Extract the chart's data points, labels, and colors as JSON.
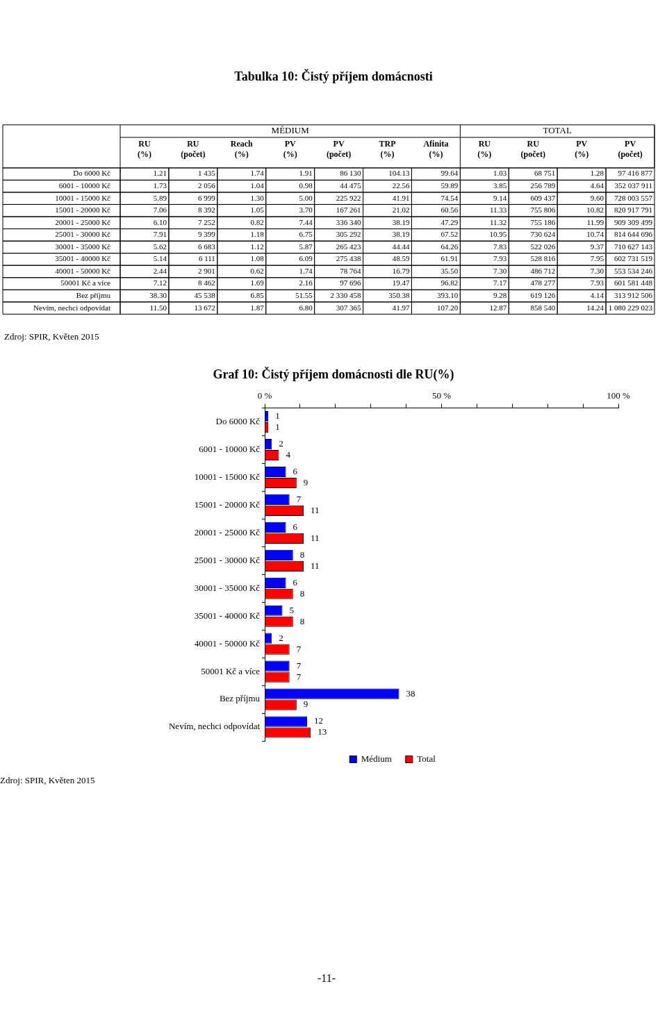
{
  "chart_data": [
    {
      "type": "heatmap",
      "title": "Tabulka 10: Čistý příjem domácnosti",
      "categories": [
        "RU (%)",
        "RU (počet)",
        "Reach (%)",
        "PV (%)",
        "PV (počet)",
        "TRP (%)",
        "Afinita (%)",
        "RU (%)",
        "RU (počet)",
        "PV (%)",
        "PV (počet)"
      ],
      "y_categories": [
        "Do 6000 Kč",
        "6001 - 10000 Kč",
        "10001 - 15000 Kč",
        "15001 - 20000 Kč",
        "20001 - 25000 Kč",
        "25001 - 30000 Kč",
        "30001 - 35000 Kč",
        "35001 - 40000 Kč",
        "40001 - 50000 Kč",
        "50001 Kč a více",
        "Bez příjmu",
        "Nevím, nechci odpovídat"
      ],
      "cells": [
        [
          1.21,
          1435,
          1.74,
          1.91,
          86130,
          104.13,
          99.64,
          1.03,
          68751,
          1.28,
          97416877
        ],
        [
          1.73,
          2056,
          1.04,
          0.98,
          44475,
          22.56,
          59.89,
          3.85,
          256789,
          4.64,
          352037911
        ],
        [
          5.89,
          6999,
          1.3,
          5.0,
          225922,
          41.91,
          74.54,
          9.14,
          609437,
          9.6,
          728003557
        ],
        [
          7.06,
          8392,
          1.05,
          3.7,
          167261,
          21.02,
          60.56,
          11.33,
          755806,
          10.82,
          820917791
        ],
        [
          6.1,
          7252,
          0.82,
          7.44,
          336340,
          38.19,
          47.29,
          11.32,
          755186,
          11.99,
          909309499
        ],
        [
          7.91,
          9399,
          1.18,
          6.75,
          305292,
          38.19,
          67.52,
          10.95,
          730624,
          10.74,
          814644696
        ],
        [
          5.62,
          6683,
          1.12,
          5.87,
          265423,
          44.44,
          64.26,
          7.83,
          522026,
          9.37,
          710627143
        ],
        [
          5.14,
          6111,
          1.08,
          6.09,
          275438,
          48.59,
          61.91,
          7.93,
          528816,
          7.95,
          602731519
        ],
        [
          2.44,
          2901,
          0.62,
          1.74,
          78764,
          16.79,
          35.5,
          7.3,
          486712,
          7.3,
          553534246
        ],
        [
          7.12,
          8462,
          1.69,
          2.16,
          97696,
          19.47,
          96.82,
          7.17,
          478277,
          7.93,
          601581448
        ],
        [
          38.3,
          45538,
          6.85,
          51.55,
          2330458,
          350.38,
          393.1,
          9.28,
          619126,
          4.14,
          313912506
        ],
        [
          11.5,
          13672,
          1.87,
          6.8,
          307365,
          41.97,
          107.2,
          12.87,
          858540,
          14.24,
          1080229023
        ]
      ],
      "cell_labels": [
        [
          "1.21",
          "1 435",
          "1.74",
          "1.91",
          "86 130",
          "104.13",
          "99.64",
          "1.03",
          "68 751",
          "1.28",
          "97 416 877"
        ],
        [
          "1.73",
          "2 056",
          "1.04",
          "0.98",
          "44 475",
          "22.56",
          "59.89",
          "3.85",
          "256 789",
          "4.64",
          "352 037 911"
        ],
        [
          "5.89",
          "6 999",
          "1.30",
          "5.00",
          "225 922",
          "41.91",
          "74.54",
          "9.14",
          "609 437",
          "9.60",
          "728 003 557"
        ],
        [
          "7.06",
          "8 392",
          "1.05",
          "3.70",
          "167 261",
          "21.02",
          "60.56",
          "11.33",
          "755 806",
          "10.82",
          "820 917 791"
        ],
        [
          "6.10",
          "7 252",
          "0.82",
          "7.44",
          "336 340",
          "38.19",
          "47.29",
          "11.32",
          "755 186",
          "11.99",
          "909 309 499"
        ],
        [
          "7.91",
          "9 399",
          "1.18",
          "6.75",
          "305 292",
          "38.19",
          "67.52",
          "10.95",
          "730 624",
          "10.74",
          "814 644 696"
        ],
        [
          "5.62",
          "6 683",
          "1.12",
          "5.87",
          "265 423",
          "44.44",
          "64.26",
          "7.83",
          "522 026",
          "9.37",
          "710 627 143"
        ],
        [
          "5.14",
          "6 111",
          "1.08",
          "6.09",
          "275 438",
          "48.59",
          "61.91",
          "7.93",
          "528 816",
          "7.95",
          "602 731 519"
        ],
        [
          "2.44",
          "2 901",
          "0.62",
          "1.74",
          "78 764",
          "16.79",
          "35.50",
          "7.30",
          "486 712",
          "7.30",
          "553 534 246"
        ],
        [
          "7.12",
          "8 462",
          "1.69",
          "2.16",
          "97 696",
          "19.47",
          "96.82",
          "7.17",
          "478 277",
          "7.93",
          "601 581 448"
        ],
        [
          "38.30",
          "45 538",
          "6.85",
          "51.55",
          "2 330 458",
          "350.38",
          "393.10",
          "9.28",
          "619 126",
          "4.14",
          "313 912 506"
        ],
        [
          "11.50",
          "13 672",
          "1.87",
          "6.80",
          "307 365",
          "41.97",
          "107.20",
          "12.87",
          "858 540",
          "14.24",
          "1 080 229 023"
        ]
      ],
      "annotations": [
        "MÉDIUM",
        "TOTAL",
        "Zdroj: SPIR, Květen 2015"
      ]
    },
    {
      "type": "bar",
      "orientation": "horizontal",
      "title": "Graf 10: Čistý příjem domácnosti dle RU(%)",
      "categories": [
        "Do 6000 Kč",
        "6001 - 10000 Kč",
        "10001 - 15000 Kč",
        "15001 - 20000 Kč",
        "20001 - 25000 Kč",
        "25001 - 30000 Kč",
        "30001 - 35000 Kč",
        "35001 - 40000 Kč",
        "40001 - 50000 Kč",
        "50001 Kč a více",
        "Bez příjmu",
        "Nevím, nechci odpovídat"
      ],
      "series": [
        {
          "name": "Médium",
          "color": "#0000ff",
          "values": [
            1,
            2,
            6,
            7,
            6,
            8,
            6,
            5,
            2,
            7,
            38,
            12
          ]
        },
        {
          "name": "Total",
          "color": "#ff0000",
          "values": [
            1,
            4,
            9,
            11,
            11,
            11,
            8,
            8,
            7,
            7,
            9,
            13
          ]
        }
      ],
      "xlim": [
        0,
        100
      ],
      "xticks": [
        {
          "value": 0,
          "label": "0 %"
        },
        {
          "value": 10,
          "label": null
        },
        {
          "value": 20,
          "label": null
        },
        {
          "value": 30,
          "label": null
        },
        {
          "value": 40,
          "label": null
        },
        {
          "value": 50,
          "label": "50 %"
        },
        {
          "value": 60,
          "label": null
        },
        {
          "value": 70,
          "label": null
        },
        {
          "value": 80,
          "label": null
        },
        {
          "value": 90,
          "label": null
        },
        {
          "value": 100,
          "label": "100 %"
        }
      ],
      "grid": false,
      "legend": "bottom",
      "data_labels": true,
      "annotations": [
        "Zdroj: SPIR, Květen 2015",
        "-11-"
      ]
    }
  ]
}
